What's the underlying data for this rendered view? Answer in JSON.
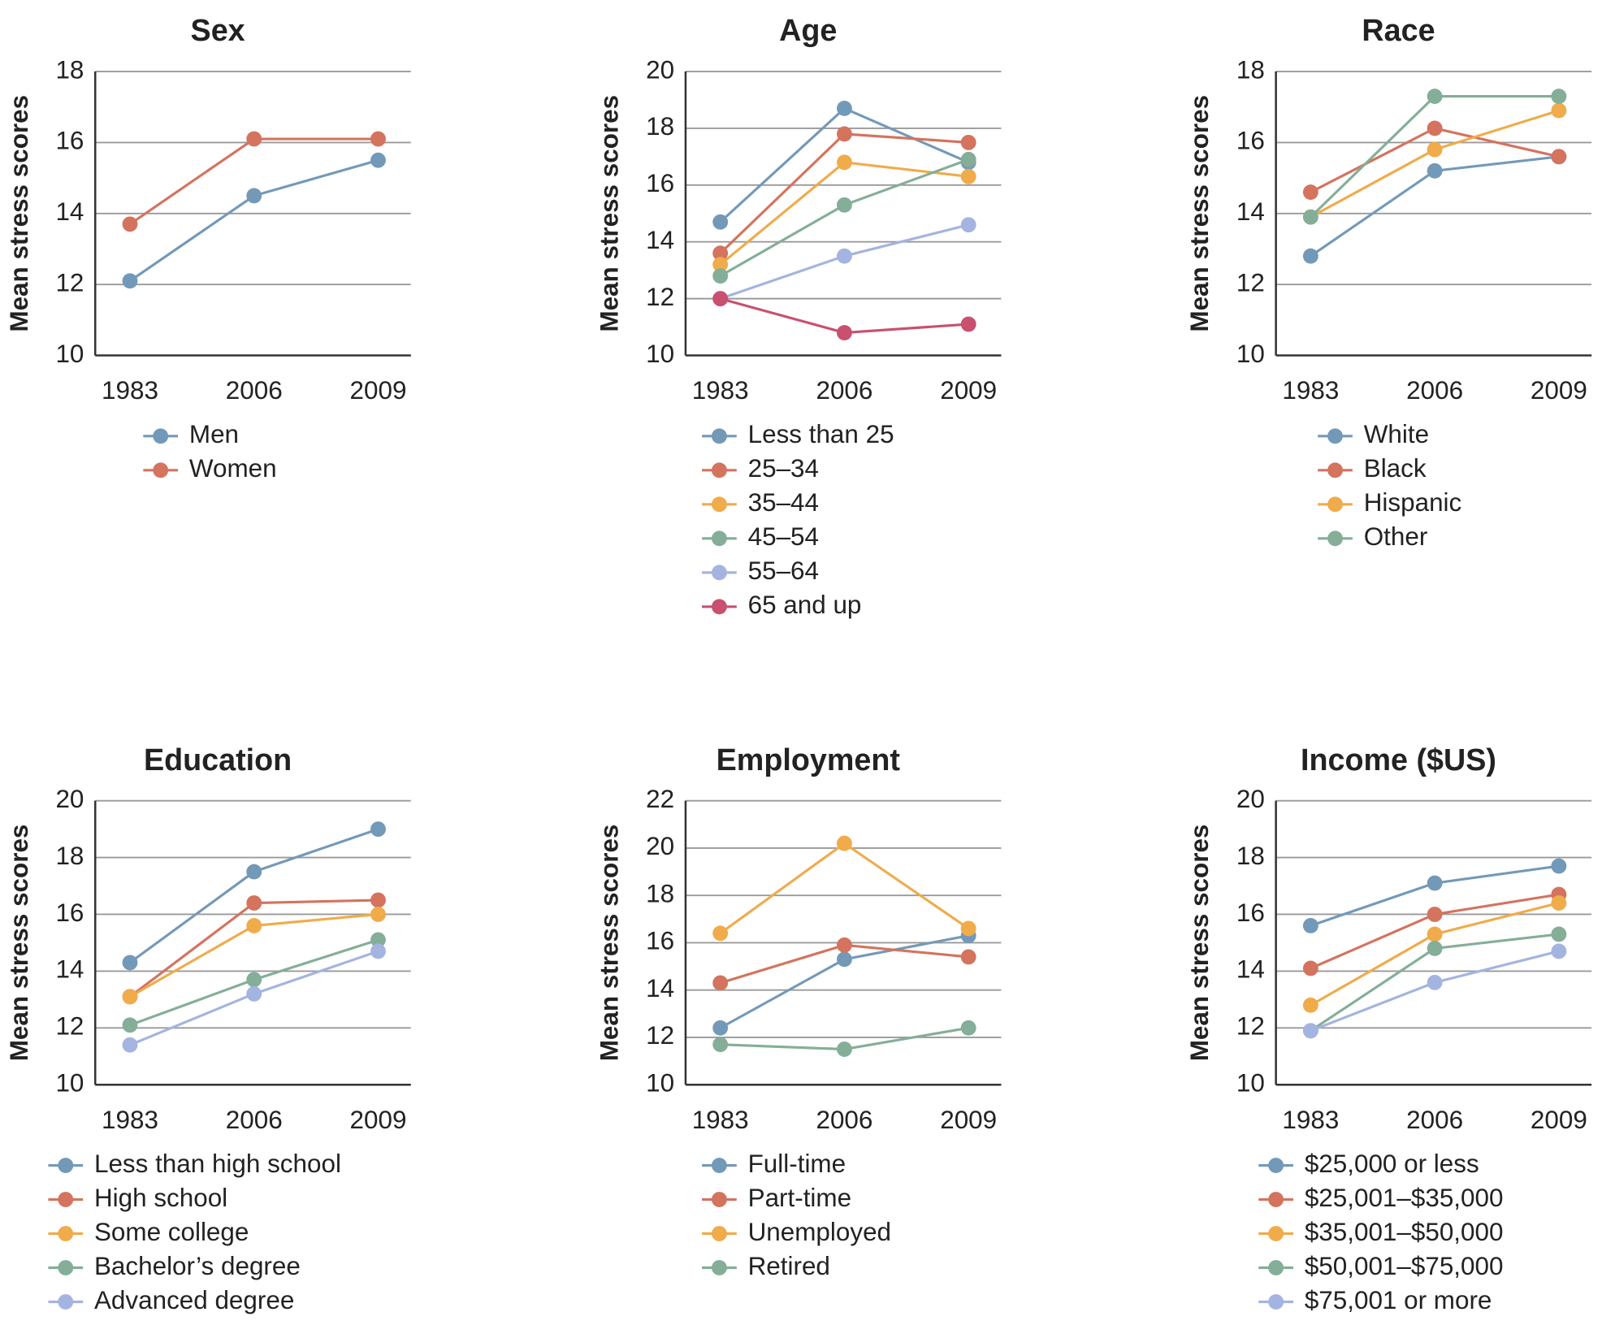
{
  "chart_data": [
    {
      "type": "line",
      "title": "Sex",
      "y_label": "Mean stress scores",
      "categories": [
        "1983",
        "2006",
        "2009"
      ],
      "ylim": [
        10,
        18
      ],
      "yticks": [
        10,
        12,
        14,
        16,
        18
      ],
      "grid": true,
      "series": [
        {
          "name": "Men",
          "color": "#7399b8",
          "values": [
            12.1,
            14.5,
            15.5
          ]
        },
        {
          "name": "Women",
          "color": "#d4735e",
          "values": [
            13.7,
            16.1,
            16.1
          ]
        }
      ]
    },
    {
      "type": "line",
      "title": "Age",
      "y_label": "Mean stress scores",
      "categories": [
        "1983",
        "2006",
        "2009"
      ],
      "ylim": [
        10,
        20
      ],
      "yticks": [
        10,
        12,
        14,
        16,
        18,
        20
      ],
      "grid": true,
      "series": [
        {
          "name": "Less than 25",
          "color": "#7399b8",
          "values": [
            14.7,
            18.7,
            16.8
          ]
        },
        {
          "name": "25–34",
          "color": "#d4735e",
          "values": [
            13.6,
            17.8,
            17.5
          ]
        },
        {
          "name": "35–44",
          "color": "#f0ab4a",
          "values": [
            13.2,
            16.8,
            16.3
          ]
        },
        {
          "name": "45–54",
          "color": "#84ae98",
          "values": [
            12.8,
            15.3,
            16.9
          ]
        },
        {
          "name": "55–64",
          "color": "#a4b4e0",
          "values": [
            12.0,
            13.5,
            14.6
          ]
        },
        {
          "name": "65 and up",
          "color": "#c9506f",
          "values": [
            12.0,
            10.8,
            11.1
          ]
        }
      ]
    },
    {
      "type": "line",
      "title": "Race",
      "y_label": "Mean stress scores",
      "categories": [
        "1983",
        "2006",
        "2009"
      ],
      "ylim": [
        10,
        18
      ],
      "yticks": [
        10,
        12,
        14,
        16,
        18
      ],
      "grid": true,
      "series": [
        {
          "name": "White",
          "color": "#7399b8",
          "values": [
            12.8,
            15.2,
            15.6
          ]
        },
        {
          "name": "Black",
          "color": "#d4735e",
          "values": [
            14.6,
            16.4,
            15.6
          ]
        },
        {
          "name": "Hispanic",
          "color": "#f0ab4a",
          "values": [
            13.9,
            15.8,
            16.9
          ]
        },
        {
          "name": "Other",
          "color": "#84ae98",
          "values": [
            13.9,
            17.3,
            17.3
          ]
        }
      ]
    },
    {
      "type": "line",
      "title": "Education",
      "y_label": "Mean stress scores",
      "categories": [
        "1983",
        "2006",
        "2009"
      ],
      "ylim": [
        10,
        20
      ],
      "yticks": [
        10,
        12,
        14,
        16,
        18,
        20
      ],
      "grid": true,
      "series": [
        {
          "name": "Less than high school",
          "color": "#7399b8",
          "values": [
            14.3,
            17.5,
            19.0
          ]
        },
        {
          "name": "High school",
          "color": "#d4735e",
          "values": [
            13.1,
            16.4,
            16.5
          ]
        },
        {
          "name": "Some college",
          "color": "#f0ab4a",
          "values": [
            13.1,
            15.6,
            16.0
          ]
        },
        {
          "name": "Bachelor’s degree",
          "color": "#84ae98",
          "values": [
            12.1,
            13.7,
            15.1
          ]
        },
        {
          "name": "Advanced degree",
          "color": "#a4b4e0",
          "values": [
            11.4,
            13.2,
            14.7
          ]
        }
      ]
    },
    {
      "type": "line",
      "title": "Employment",
      "y_label": "Mean stress scores",
      "categories": [
        "1983",
        "2006",
        "2009"
      ],
      "ylim": [
        10,
        22
      ],
      "yticks": [
        10,
        12,
        14,
        16,
        18,
        20,
        22
      ],
      "grid": true,
      "series": [
        {
          "name": "Full-time",
          "color": "#7399b8",
          "values": [
            12.4,
            15.3,
            16.3
          ]
        },
        {
          "name": "Part-time",
          "color": "#d4735e",
          "values": [
            14.3,
            15.9,
            15.4
          ]
        },
        {
          "name": "Unemployed",
          "color": "#f0ab4a",
          "values": [
            16.4,
            20.2,
            16.6
          ]
        },
        {
          "name": "Retired",
          "color": "#84ae98",
          "values": [
            11.7,
            11.5,
            12.4
          ]
        }
      ]
    },
    {
      "type": "line",
      "title": "Income ($US)",
      "y_label": "Mean stress scores",
      "categories": [
        "1983",
        "2006",
        "2009"
      ],
      "ylim": [
        10,
        20
      ],
      "yticks": [
        10,
        12,
        14,
        16,
        18,
        20
      ],
      "grid": true,
      "series": [
        {
          "name": "$25,000 or less",
          "color": "#7399b8",
          "values": [
            15.6,
            17.1,
            17.7
          ]
        },
        {
          "name": "$25,001–$35,000",
          "color": "#d4735e",
          "values": [
            14.1,
            16.0,
            16.7
          ]
        },
        {
          "name": "$35,001–$50,000",
          "color": "#f0ab4a",
          "values": [
            12.8,
            15.3,
            16.4
          ]
        },
        {
          "name": "$50,001–$75,000",
          "color": "#84ae98",
          "values": [
            11.9,
            14.8,
            15.3
          ]
        },
        {
          "name": "$75,001 or more",
          "color": "#a4b4e0",
          "values": [
            11.9,
            13.6,
            14.7
          ]
        }
      ]
    }
  ]
}
